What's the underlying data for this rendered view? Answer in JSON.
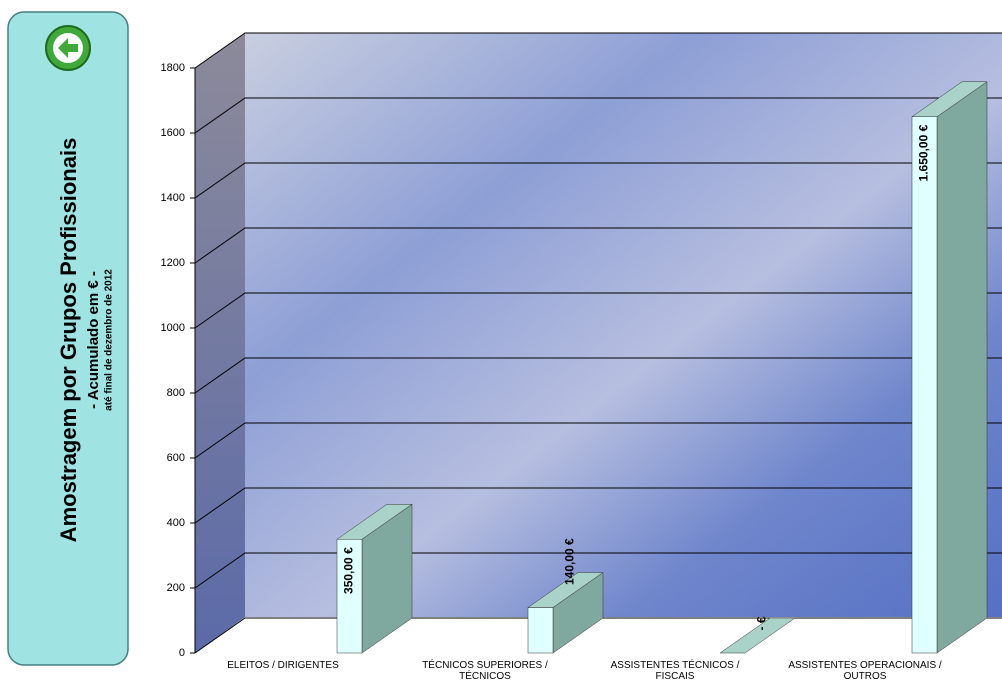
{
  "panel": {
    "title": "Amostragem por Grupos Profissionais",
    "subtitle": "- Acumulado em € -",
    "note": "até final de dezembro de 2012"
  },
  "chart_data": {
    "type": "bar3d",
    "categories": [
      "ELEITOS / DIRIGENTES",
      "TÉCNICOS SUPERIORES / TÉCNICOS",
      "ASSISTENTES TÉCNICOS / FISCAIS",
      "ASSISTENTES OPERACIONAIS / OUTROS"
    ],
    "values": [
      350,
      140,
      0,
      1650
    ],
    "value_labels": [
      "350,00 €",
      "140,00 €",
      "- €",
      "1.650,00 €"
    ],
    "color": "#e0ffff",
    "ylim": [
      0,
      1800
    ],
    "yticks": [
      0,
      200,
      400,
      600,
      800,
      1000,
      1200,
      1400,
      1600,
      1800
    ],
    "grid": true
  }
}
